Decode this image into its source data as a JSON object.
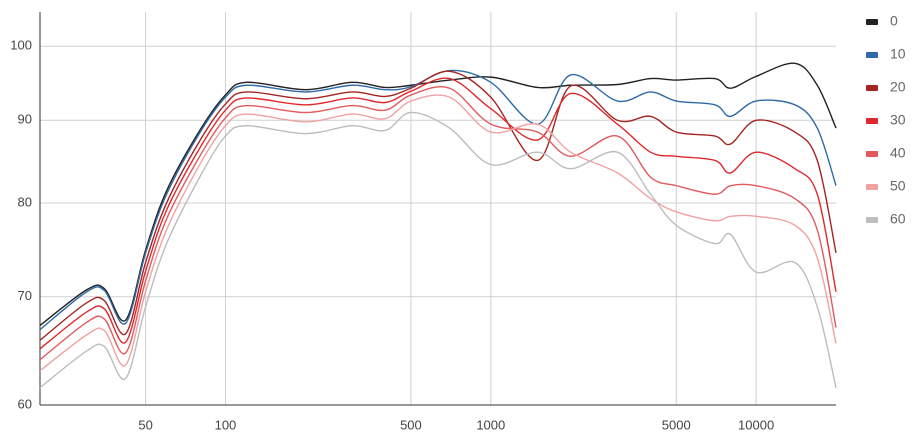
{
  "chart_data": {
    "type": "line",
    "xscale": "log",
    "yscale": "log",
    "grid": true,
    "legend": "right",
    "x": [
      20,
      30,
      35,
      42,
      50,
      60,
      80,
      100,
      120,
      200,
      300,
      400,
      500,
      700,
      1000,
      1500,
      2000,
      3000,
      4000,
      5000,
      7000,
      8000,
      10000,
      14000,
      17000,
      20000
    ],
    "xlim": [
      20,
      20000
    ],
    "xticks": [
      50,
      100,
      500,
      1000,
      5000,
      10000
    ],
    "ylim": [
      60,
      105
    ],
    "yticks": [
      60,
      70,
      80,
      90,
      100
    ],
    "series": [
      {
        "name": "0",
        "color": "#222222",
        "values": [
          67.2,
          70.7,
          70.8,
          67.7,
          74.8,
          81.4,
          88.7,
          93.3,
          95.0,
          94.0,
          95.0,
          94.3,
          94.6,
          95.3,
          95.7,
          94.3,
          94.6,
          94.7,
          95.5,
          95.3,
          95.5,
          94.2,
          95.8,
          97.6,
          94.6,
          89.0
        ]
      },
      {
        "name": "10",
        "color": "#2f6aa6",
        "values": [
          66.8,
          70.5,
          70.6,
          67.4,
          74.5,
          81,
          88.4,
          93,
          94.6,
          93.7,
          94.6,
          94,
          94.4,
          96.6,
          95,
          89.5,
          96,
          92.5,
          93.7,
          92.5,
          92,
          90.5,
          92.5,
          92,
          89,
          82
        ]
      },
      {
        "name": "20",
        "color": "#a52424",
        "values": [
          65.8,
          69.4,
          69.6,
          66.4,
          73.5,
          80,
          87.4,
          92.1,
          93.7,
          92.8,
          93.7,
          93.1,
          94.2,
          96.5,
          93,
          85,
          94.5,
          90,
          90.5,
          88.5,
          88,
          87,
          90,
          88.5,
          85,
          74.5
        ]
      },
      {
        "name": "30",
        "color": "#e0282c",
        "values": [
          65,
          68.5,
          68.8,
          65.6,
          72.6,
          79.2,
          86.5,
          91.3,
          92.9,
          92,
          92.9,
          92.3,
          93.8,
          95.5,
          91.5,
          87.5,
          93.5,
          89.5,
          86,
          85.5,
          85,
          83.5,
          86,
          84,
          81,
          70.5
        ]
      },
      {
        "name": "40",
        "color": "#e05a5e",
        "values": [
          64,
          67.5,
          67.8,
          64.6,
          71.6,
          78.2,
          85.5,
          90.3,
          91.9,
          91,
          91.9,
          91.3,
          93.3,
          94.2,
          89.5,
          88.5,
          85.5,
          88,
          83,
          82,
          81,
          82,
          82,
          80.5,
          77,
          67
        ]
      },
      {
        "name": "50",
        "color": "#f0a2a2",
        "values": [
          63,
          66.3,
          66.7,
          63.5,
          70.5,
          77,
          84.5,
          89.3,
          90.8,
          89.8,
          90.8,
          90.2,
          92.5,
          93,
          88.5,
          89.5,
          86,
          83.5,
          80.5,
          79,
          78,
          78.5,
          78.5,
          77.5,
          74,
          65.5
        ]
      },
      {
        "name": "60",
        "color": "#bdbdbd",
        "values": [
          61.5,
          64.8,
          65.2,
          62.3,
          69,
          75.5,
          83,
          88,
          89.3,
          88.3,
          89.3,
          88.7,
          91,
          89,
          84.5,
          86,
          84,
          86,
          81,
          77.5,
          75.5,
          76.5,
          72.5,
          73.5,
          69,
          61.5
        ]
      }
    ]
  }
}
